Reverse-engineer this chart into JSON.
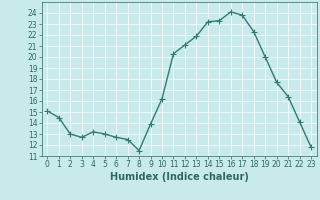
{
  "x": [
    0,
    1,
    2,
    3,
    4,
    5,
    6,
    7,
    8,
    9,
    10,
    11,
    12,
    13,
    14,
    15,
    16,
    17,
    18,
    19,
    20,
    21,
    22,
    23
  ],
  "y": [
    15.1,
    14.5,
    13.0,
    12.7,
    13.2,
    13.0,
    12.7,
    12.5,
    11.5,
    13.9,
    16.2,
    20.3,
    21.1,
    21.9,
    23.2,
    23.3,
    24.1,
    23.8,
    22.3,
    20.0,
    17.7,
    16.4,
    14.1,
    11.8
  ],
  "line_color": "#2e7d6e",
  "marker": "+",
  "bg_color": "#c8eaea",
  "grid_color": "#ffffff",
  "xlabel": "Humidex (Indice chaleur)",
  "ylim": [
    11,
    25
  ],
  "xlim": [
    -0.5,
    23.5
  ],
  "yticks": [
    11,
    12,
    13,
    14,
    15,
    16,
    17,
    18,
    19,
    20,
    21,
    22,
    23,
    24
  ],
  "xticks": [
    0,
    1,
    2,
    3,
    4,
    5,
    6,
    7,
    8,
    9,
    10,
    11,
    12,
    13,
    14,
    15,
    16,
    17,
    18,
    19,
    20,
    21,
    22,
    23
  ],
  "font_color": "#2e6b5e",
  "linewidth": 1.0,
  "markersize": 4,
  "tick_fontsize": 5.5,
  "xlabel_fontsize": 7
}
